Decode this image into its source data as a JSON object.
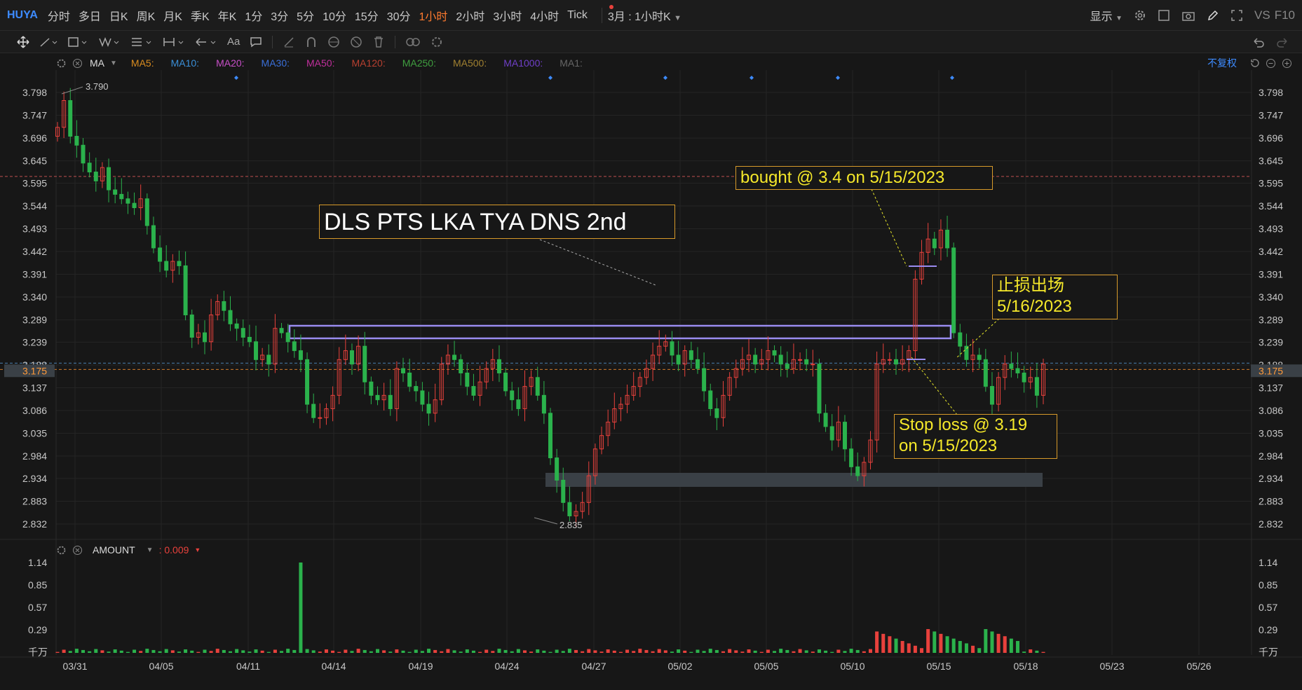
{
  "symbol": "HUYA",
  "timeframes": [
    "分时",
    "多日",
    "日K",
    "周K",
    "月K",
    "季K",
    "年K",
    "1分",
    "3分",
    "5分",
    "10分",
    "15分",
    "30分",
    "1小时",
    "2小时",
    "3小时",
    "4小时",
    "Tick"
  ],
  "active_timeframe_index": 13,
  "period_select": "3月 : 1小时K",
  "top_right": {
    "display_label": "显示",
    "vs_label": "VS",
    "f10_label": "F10"
  },
  "toolbar": {
    "text_tool": "Aa"
  },
  "ma_header": {
    "label": "MA",
    "items": [
      {
        "label": "MA5:",
        "color": "#d98c1f"
      },
      {
        "label": "MA10:",
        "color": "#3a8fd8"
      },
      {
        "label": "MA20:",
        "color": "#c84fc8"
      },
      {
        "label": "MA30:",
        "color": "#3a6fd8"
      },
      {
        "label": "MA50:",
        "color": "#c02f9c"
      },
      {
        "label": "MA120:",
        "color": "#b84030"
      },
      {
        "label": "MA250:",
        "color": "#3f9f3f"
      },
      {
        "label": "MA500:",
        "color": "#a08030"
      },
      {
        "label": "MA1000:",
        "color": "#6f3fc8"
      },
      {
        "label": "MA1:",
        "color": "#666666"
      }
    ],
    "adjust_label": "不复权"
  },
  "price_axis": {
    "ticks": [
      "3.798",
      "3.747",
      "3.696",
      "3.645",
      "3.595",
      "3.544",
      "3.493",
      "3.442",
      "3.391",
      "3.340",
      "3.289",
      "3.239",
      "3.188",
      "3.137",
      "3.086",
      "3.035",
      "2.984",
      "2.934",
      "2.883",
      "2.832"
    ],
    "current_price": "3.175",
    "high_label": "3.790",
    "low_label": "2.835"
  },
  "volume_panel": {
    "label": "AMOUNT",
    "value": ": 0.009",
    "ticks": [
      "1.14",
      "0.85",
      "0.57",
      "0.29",
      "千万"
    ]
  },
  "dates": [
    "03/31",
    "04/05",
    "04/11",
    "04/14",
    "04/19",
    "04/24",
    "04/27",
    "05/02",
    "05/05",
    "05/10",
    "05/15",
    "05/18",
    "05/23",
    "05/26"
  ],
  "annotations": {
    "title": "DLS PTS LKA TYA DNS 2nd",
    "bought": "bought @ 3.4 on 5/15/2023",
    "stop_exit_line1": "止损出场",
    "stop_exit_line2": "5/16/2023",
    "stop_loss_line1": "Stop loss @ 3.19",
    "stop_loss_line2": "on 5/15/2023"
  },
  "colors": {
    "up": "#e8413c",
    "down": "#2bb24c",
    "accent": "#ff7a2e",
    "annotation_border": "#d79a2a",
    "annotation_text": "#f5e82a",
    "zone_box": "#9a8cf0",
    "support_zone": "#3a4046"
  },
  "chart_data": {
    "type": "candlestick",
    "ylim": [
      2.81,
      3.82
    ],
    "lines": [
      {
        "value": 3.61,
        "color": "#c05050"
      },
      {
        "value": 3.192,
        "color": "#4a7fb0"
      },
      {
        "value": 3.178,
        "color": "#d07a2a"
      }
    ],
    "closes": [
      3.72,
      3.78,
      3.7,
      3.68,
      3.64,
      3.62,
      3.6,
      3.63,
      3.58,
      3.57,
      3.56,
      3.55,
      3.54,
      3.56,
      3.5,
      3.45,
      3.42,
      3.4,
      3.42,
      3.41,
      3.3,
      3.25,
      3.26,
      3.24,
      3.3,
      3.33,
      3.31,
      3.28,
      3.27,
      3.25,
      3.24,
      3.2,
      3.21,
      3.19,
      3.27,
      3.26,
      3.24,
      3.22,
      3.2,
      3.1,
      3.07,
      3.07,
      3.09,
      3.12,
      3.2,
      3.22,
      3.19,
      3.23,
      3.15,
      3.12,
      3.11,
      3.12,
      3.09,
      3.18,
      3.17,
      3.14,
      3.13,
      3.1,
      3.08,
      3.11,
      3.19,
      3.21,
      3.2,
      3.17,
      3.14,
      3.12,
      3.15,
      3.18,
      3.2,
      3.17,
      3.13,
      3.11,
      3.09,
      3.14,
      3.16,
      3.12,
      3.08,
      2.98,
      2.93,
      2.88,
      2.85,
      2.86,
      2.88,
      2.94,
      3.0,
      3.03,
      3.06,
      3.09,
      3.1,
      3.12,
      3.14,
      3.16,
      3.18,
      3.21,
      3.23,
      3.24,
      3.21,
      3.19,
      3.22,
      3.2,
      3.18,
      3.13,
      3.09,
      3.07,
      3.12,
      3.16,
      3.18,
      3.2,
      3.21,
      3.19,
      3.2,
      3.22,
      3.21,
      3.19,
      3.18,
      3.2,
      3.2,
      3.19,
      3.19,
      3.08,
      3.05,
      3.02,
      3.06,
      3.0,
      2.96,
      2.94,
      2.97,
      3.02,
      3.19,
      3.2,
      3.2,
      3.19,
      3.2,
      3.22,
      3.38,
      3.44,
      3.47,
      3.45,
      3.49,
      3.45,
      3.26,
      3.23,
      3.2,
      3.21,
      3.2,
      3.14,
      3.1,
      3.16,
      3.19,
      3.18,
      3.17,
      3.15,
      3.16,
      3.12,
      3.19
    ]
  }
}
